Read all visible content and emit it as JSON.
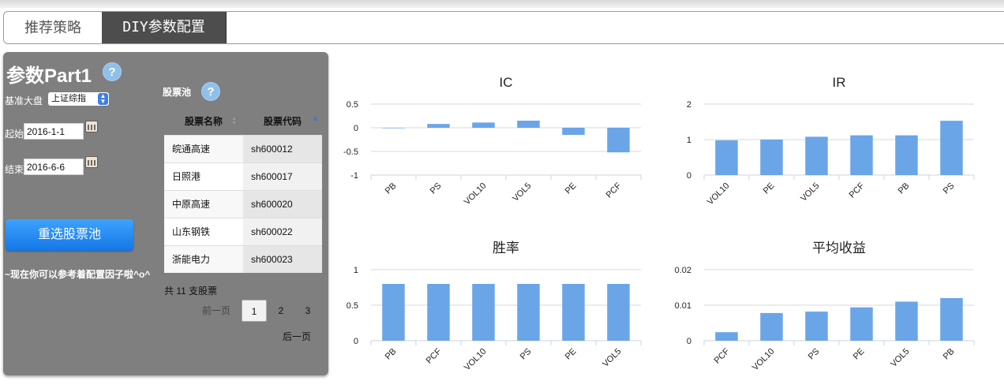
{
  "tabs": [
    {
      "label": "推荐策略",
      "active": false
    },
    {
      "label": "DIY参数配置",
      "active": true
    }
  ],
  "panel": {
    "title": "参数Part1",
    "help_glyph": "?",
    "benchmark_label": "基准大盘",
    "benchmark_value": "上证综指",
    "start_label": "起始",
    "start_value": "2016-1-1",
    "end_label": "结束",
    "end_value": "2016-6-6",
    "reselect_button": "重选股票池",
    "hint": "~现在你可以参考着配置因子啦^o^"
  },
  "pool": {
    "label": "股票池",
    "headers": {
      "name": "股票名称",
      "code": "股票代码"
    },
    "rows": [
      {
        "name": "皖通高速",
        "code": "sh600012"
      },
      {
        "name": "日照港",
        "code": "sh600017"
      },
      {
        "name": "中原高速",
        "code": "sh600020"
      },
      {
        "name": "山东钢铁",
        "code": "sh600022"
      },
      {
        "name": "浙能电力",
        "code": "sh600023"
      }
    ],
    "total": "共 11 支股票",
    "prev": "前一页",
    "pages": [
      "1",
      "2",
      "3"
    ],
    "current_page": "1",
    "next": "后一页"
  },
  "colors": {
    "bar": "#6aa5e8",
    "panel": "#7f7f7f",
    "button": "#1e88f0",
    "active_tab": "#4d4d4d"
  },
  "chart_data": [
    {
      "type": "bar",
      "title": "IC",
      "categories": [
        "PB",
        "PS",
        "VOL10",
        "VOL5",
        "PE",
        "PCF"
      ],
      "values": [
        0.0,
        0.08,
        0.11,
        0.15,
        -0.15,
        -0.52
      ],
      "ylim": [
        -1,
        0.5
      ],
      "yticks": [
        0.5,
        0,
        -0.5,
        -1
      ],
      "ytick_labels": [
        "0.5",
        "0",
        "-0.5",
        "-1"
      ],
      "grid": true
    },
    {
      "type": "bar",
      "title": "IR",
      "categories": [
        "VOL10",
        "PE",
        "VOL5",
        "PCF",
        "PB",
        "PS"
      ],
      "values": [
        0.98,
        1.0,
        1.08,
        1.12,
        1.12,
        1.53
      ],
      "ylim": [
        0,
        2
      ],
      "yticks": [
        2,
        1,
        0
      ],
      "ytick_labels": [
        "2",
        "1",
        "0"
      ],
      "grid": true
    },
    {
      "type": "bar",
      "title": "胜率",
      "categories": [
        "PB",
        "PCF",
        "VOL10",
        "PS",
        "PE",
        "VOL5"
      ],
      "values": [
        0.8,
        0.8,
        0.8,
        0.8,
        0.8,
        0.8
      ],
      "ylim": [
        0,
        1
      ],
      "yticks": [
        1,
        0.5,
        0
      ],
      "ytick_labels": [
        "1",
        "0.5",
        "0"
      ],
      "grid": true
    },
    {
      "type": "bar",
      "title": "平均收益",
      "categories": [
        "PCF",
        "VOL10",
        "PS",
        "PE",
        "VOL5",
        "PB"
      ],
      "values": [
        0.0024,
        0.0078,
        0.0082,
        0.0094,
        0.011,
        0.012
      ],
      "ylim": [
        0,
        0.02
      ],
      "yticks": [
        0.02,
        0.01,
        0
      ],
      "ytick_labels": [
        "0.02",
        "0.01",
        "0"
      ],
      "grid": true
    }
  ]
}
